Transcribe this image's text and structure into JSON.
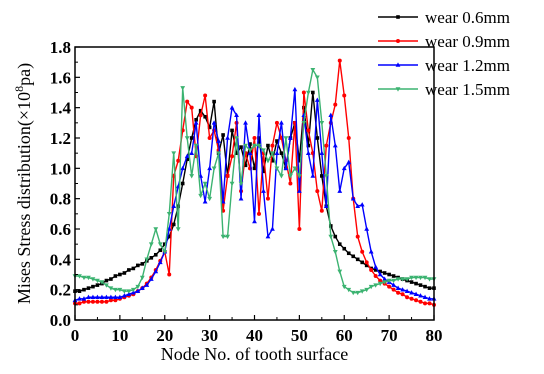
{
  "chart_data": {
    "type": "line",
    "title": "",
    "xlabel": "Node No. of tooth surface",
    "ylabel_prefix": "Mises Stress distribution(×10",
    "ylabel_exp": "8",
    "ylabel_suffix": "pa)",
    "xlim": [
      0,
      80
    ],
    "ylim": [
      0.0,
      1.8
    ],
    "xticks": [
      0,
      10,
      20,
      30,
      40,
      50,
      60,
      70,
      80
    ],
    "yticks": [
      0.0,
      0.2,
      0.4,
      0.6,
      0.8,
      1.0,
      1.2,
      1.4,
      1.6,
      1.8
    ],
    "ytick_labels": [
      "0.0",
      "0.2",
      "0.4",
      "0.6",
      "0.8",
      "1.0",
      "1.2",
      "1.4",
      "1.6",
      "1.8"
    ],
    "grid": false,
    "legend_position": "top-right",
    "series": [
      {
        "name": "wear 0.6mm",
        "color": "#000000",
        "marker": "square",
        "x": [
          0,
          1,
          2,
          3,
          4,
          5,
          6,
          7,
          8,
          9,
          10,
          11,
          12,
          13,
          14,
          15,
          16,
          17,
          18,
          19,
          20,
          21,
          22,
          23,
          24,
          25,
          26,
          27,
          28,
          29,
          30,
          31,
          32,
          33,
          34,
          35,
          36,
          37,
          38,
          39,
          40,
          41,
          42,
          43,
          44,
          45,
          46,
          47,
          48,
          49,
          50,
          51,
          52,
          53,
          54,
          55,
          56,
          57,
          58,
          59,
          60,
          61,
          62,
          63,
          64,
          65,
          66,
          67,
          68,
          69,
          70,
          71,
          72,
          73,
          74,
          75,
          76,
          77,
          78,
          79,
          80
        ],
        "y": [
          0.19,
          0.19,
          0.2,
          0.21,
          0.22,
          0.23,
          0.24,
          0.26,
          0.27,
          0.29,
          0.3,
          0.31,
          0.33,
          0.34,
          0.36,
          0.37,
          0.39,
          0.41,
          0.43,
          0.46,
          0.5,
          0.55,
          0.63,
          0.75,
          0.9,
          1.06,
          1.2,
          1.32,
          1.38,
          1.34,
          1.27,
          1.44,
          1.1,
          1.22,
          0.95,
          1.25,
          1.1,
          1.14,
          1.02,
          1.16,
          1.0,
          1.2,
          0.98,
          1.15,
          1.05,
          1.18,
          1.1,
          1.0,
          1.2,
          1.3,
          1.05,
          1.4,
          1.15,
          1.5,
          1.2,
          0.95,
          0.75,
          0.62,
          0.55,
          0.5,
          0.47,
          0.44,
          0.42,
          0.4,
          0.38,
          0.36,
          0.34,
          0.33,
          0.32,
          0.31,
          0.3,
          0.29,
          0.28,
          0.27,
          0.26,
          0.25,
          0.24,
          0.23,
          0.22,
          0.21,
          0.21
        ]
      },
      {
        "name": "wear 0.9mm",
        "color": "#ff0000",
        "marker": "circle",
        "x": [
          0,
          1,
          2,
          3,
          4,
          5,
          6,
          7,
          8,
          9,
          10,
          11,
          12,
          13,
          14,
          15,
          16,
          17,
          18,
          19,
          20,
          21,
          22,
          23,
          24,
          25,
          26,
          27,
          28,
          29,
          30,
          31,
          32,
          33,
          34,
          35,
          36,
          37,
          38,
          39,
          40,
          41,
          42,
          43,
          44,
          45,
          46,
          47,
          48,
          49,
          50,
          51,
          52,
          53,
          54,
          55,
          56,
          57,
          58,
          59,
          60,
          61,
          62,
          63,
          64,
          65,
          66,
          67,
          68,
          69,
          70,
          71,
          72,
          73,
          74,
          75,
          76,
          77,
          78,
          79,
          80
        ],
        "y": [
          0.11,
          0.11,
          0.12,
          0.12,
          0.12,
          0.12,
          0.12,
          0.12,
          0.13,
          0.13,
          0.14,
          0.15,
          0.16,
          0.17,
          0.19,
          0.21,
          0.24,
          0.28,
          0.33,
          0.39,
          0.45,
          0.3,
          0.95,
          1.05,
          1.25,
          1.44,
          1.4,
          1.08,
          1.35,
          1.48,
          1.2,
          1.25,
          1.12,
          0.72,
          0.95,
          1.08,
          1.3,
          0.85,
          1.1,
          1.0,
          1.2,
          0.7,
          1.1,
          0.8,
          1.15,
          1.3,
          1.2,
          1.05,
          0.9,
          1.3,
          0.6,
          1.5,
          1.25,
          1.1,
          0.85,
          0.72,
          1.15,
          1.3,
          1.42,
          1.71,
          1.48,
          1.2,
          0.8,
          0.55,
          0.45,
          0.38,
          0.33,
          0.29,
          0.26,
          0.24,
          0.22,
          0.2,
          0.18,
          0.17,
          0.15,
          0.14,
          0.13,
          0.12,
          0.11,
          0.11,
          0.1
        ]
      },
      {
        "name": "wear 1.2mm",
        "color": "#0000ff",
        "marker": "triangle",
        "x": [
          0,
          1,
          2,
          3,
          4,
          5,
          6,
          7,
          8,
          9,
          10,
          11,
          12,
          13,
          14,
          15,
          16,
          17,
          18,
          19,
          20,
          21,
          22,
          23,
          24,
          25,
          26,
          27,
          28,
          29,
          30,
          31,
          32,
          33,
          34,
          35,
          36,
          37,
          38,
          39,
          40,
          41,
          42,
          43,
          44,
          45,
          46,
          47,
          48,
          49,
          50,
          51,
          52,
          53,
          54,
          55,
          56,
          57,
          58,
          59,
          60,
          61,
          62,
          63,
          64,
          65,
          66,
          67,
          68,
          69,
          70,
          71,
          72,
          73,
          74,
          75,
          76,
          77,
          78,
          79,
          80
        ],
        "y": [
          0.13,
          0.14,
          0.14,
          0.15,
          0.15,
          0.15,
          0.15,
          0.15,
          0.15,
          0.15,
          0.15,
          0.16,
          0.17,
          0.18,
          0.19,
          0.21,
          0.23,
          0.27,
          0.32,
          0.38,
          0.45,
          0.6,
          0.75,
          0.88,
          1.0,
          1.08,
          1.1,
          1.3,
          0.95,
          0.78,
          1.0,
          1.3,
          1.18,
          0.78,
          1.2,
          1.4,
          1.35,
          0.8,
          1.3,
          1.1,
          0.65,
          1.35,
          0.85,
          0.55,
          0.6,
          1.1,
          1.3,
          1.0,
          1.2,
          1.52,
          0.85,
          1.35,
          1.1,
          0.95,
          1.45,
          1.1,
          0.75,
          1.35,
          1.15,
          0.85,
          1.0,
          1.04,
          0.8,
          0.75,
          0.76,
          0.6,
          0.45,
          0.35,
          0.3,
          0.27,
          0.25,
          0.23,
          0.21,
          0.2,
          0.19,
          0.18,
          0.17,
          0.16,
          0.15,
          0.14,
          0.14
        ]
      },
      {
        "name": "wear 1.5mm",
        "color": "#3cb371",
        "marker": "inverted-triangle",
        "x": [
          0,
          1,
          2,
          3,
          4,
          5,
          6,
          7,
          8,
          9,
          10,
          11,
          12,
          13,
          14,
          15,
          16,
          17,
          18,
          19,
          20,
          21,
          22,
          23,
          24,
          25,
          26,
          27,
          28,
          29,
          30,
          31,
          32,
          33,
          34,
          35,
          36,
          37,
          38,
          39,
          40,
          41,
          42,
          43,
          44,
          45,
          46,
          47,
          48,
          49,
          50,
          51,
          52,
          53,
          54,
          55,
          56,
          57,
          58,
          59,
          60,
          61,
          62,
          63,
          64,
          65,
          66,
          67,
          68,
          69,
          70,
          71,
          72,
          73,
          74,
          75,
          76,
          77,
          78,
          79,
          80
        ],
        "y": [
          0.29,
          0.29,
          0.28,
          0.28,
          0.27,
          0.26,
          0.25,
          0.23,
          0.21,
          0.2,
          0.2,
          0.19,
          0.19,
          0.2,
          0.22,
          0.28,
          0.4,
          0.5,
          0.6,
          0.5,
          0.45,
          0.7,
          1.1,
          0.6,
          1.53,
          1.2,
          0.95,
          1.15,
          0.82,
          0.9,
          0.8,
          1.0,
          1.1,
          0.55,
          0.55,
          0.9,
          1.2,
          0.9,
          1.15,
          1.12,
          1.15,
          1.15,
          1.12,
          1.05,
          1.1,
          1.0,
          0.95,
          1.2,
          0.95,
          1.0,
          0.95,
          1.3,
          1.5,
          1.65,
          1.6,
          1.3,
          0.95,
          0.55,
          0.45,
          0.32,
          0.22,
          0.2,
          0.18,
          0.18,
          0.19,
          0.2,
          0.22,
          0.23,
          0.24,
          0.25,
          0.26,
          0.26,
          0.27,
          0.27,
          0.27,
          0.28,
          0.28,
          0.28,
          0.28,
          0.27,
          0.27
        ]
      }
    ]
  }
}
